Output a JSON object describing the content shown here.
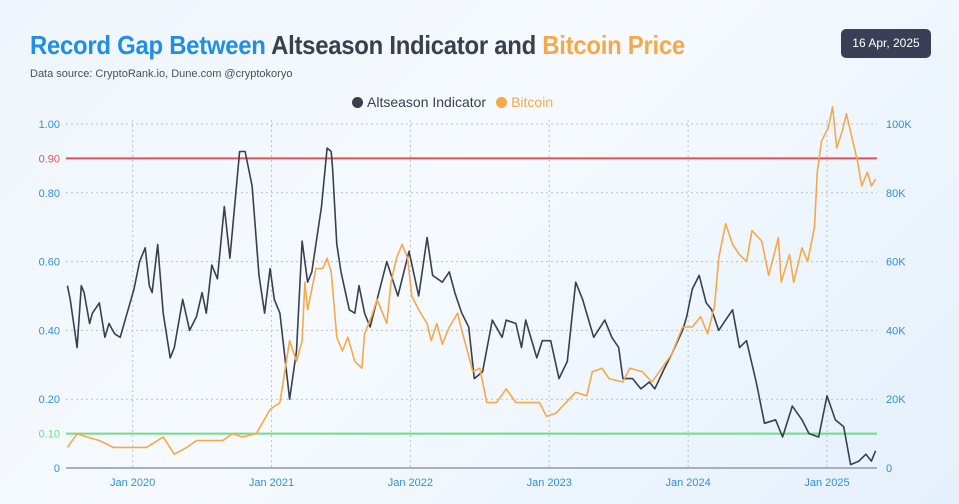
{
  "header": {
    "title_part1": "Record Gap Between",
    "title_part2": "Altseason Indicator and",
    "title_part3": "Bitcoin Price",
    "date_badge": "16 Apr, 2025",
    "subtitle": "Data source: CryptoRank.io, Dune.com @cryptokoryo"
  },
  "colors": {
    "accent_blue": "#1f8ee3",
    "altseason": "#3a3f4e",
    "bitcoin": "#f4a94a",
    "red_threshold": "#e05252",
    "green_threshold": "#6fdc87"
  },
  "chart_data": {
    "type": "line",
    "title": "Record Gap Between Altseason Indicator and Bitcoin Price",
    "legend": {
      "placement": "top-center",
      "entries": [
        "Altseason Indicator",
        "Bitcoin"
      ]
    },
    "xlim": [
      2019.52,
      2025.36
    ],
    "x_ticks": [
      {
        "x": 2020.0,
        "label": "Jan 2020"
      },
      {
        "x": 2021.0,
        "label": "Jan 2021"
      },
      {
        "x": 2022.0,
        "label": "Jan 2022"
      },
      {
        "x": 2023.0,
        "label": "Jan 2023"
      },
      {
        "x": 2024.0,
        "label": "Jan 2024"
      },
      {
        "x": 2025.0,
        "label": "Jan 2025"
      }
    ],
    "y_left": {
      "lim": [
        0,
        1
      ],
      "ticks": [
        {
          "v": 1.0,
          "label": "1.00"
        },
        {
          "v": 0.8,
          "label": "0.80"
        },
        {
          "v": 0.6,
          "label": "0.60"
        },
        {
          "v": 0.4,
          "label": "0.40"
        },
        {
          "v": 0.2,
          "label": "0.20"
        },
        {
          "v": 0,
          "label": "0"
        }
      ]
    },
    "y_right": {
      "lim": [
        0,
        100
      ],
      "unit": "K",
      "ticks": [
        {
          "v": 100,
          "label": "100K"
        },
        {
          "v": 80,
          "label": "80K"
        },
        {
          "v": 60,
          "label": "60K"
        },
        {
          "v": 40,
          "label": "40K"
        },
        {
          "v": 20,
          "label": "20K"
        },
        {
          "v": 0,
          "label": "0"
        }
      ]
    },
    "thresholds": [
      {
        "v": 0.9,
        "label": "0.90",
        "color": "#e05252"
      },
      {
        "v": 0.1,
        "label": "0.10",
        "color": "#6fdc87"
      }
    ],
    "grid": true,
    "series": [
      {
        "name": "Altseason Indicator",
        "axis": "left",
        "color": "#3a3f4e",
        "points": [
          [
            2019.53,
            0.53
          ],
          [
            2019.55,
            0.49
          ],
          [
            2019.6,
            0.35
          ],
          [
            2019.63,
            0.53
          ],
          [
            2019.65,
            0.51
          ],
          [
            2019.69,
            0.42
          ],
          [
            2019.71,
            0.45
          ],
          [
            2019.76,
            0.48
          ],
          [
            2019.8,
            0.38
          ],
          [
            2019.83,
            0.42
          ],
          [
            2019.87,
            0.39
          ],
          [
            2019.91,
            0.38
          ],
          [
            2019.96,
            0.45
          ],
          [
            2020.01,
            0.52
          ],
          [
            2020.05,
            0.6
          ],
          [
            2020.09,
            0.64
          ],
          [
            2020.12,
            0.53
          ],
          [
            2020.14,
            0.51
          ],
          [
            2020.18,
            0.65
          ],
          [
            2020.22,
            0.45
          ],
          [
            2020.27,
            0.32
          ],
          [
            2020.3,
            0.35
          ],
          [
            2020.36,
            0.49
          ],
          [
            2020.41,
            0.4
          ],
          [
            2020.46,
            0.44
          ],
          [
            2020.5,
            0.51
          ],
          [
            2020.53,
            0.45
          ],
          [
            2020.57,
            0.59
          ],
          [
            2020.61,
            0.55
          ],
          [
            2020.66,
            0.76
          ],
          [
            2020.7,
            0.61
          ],
          [
            2020.77,
            0.92
          ],
          [
            2020.81,
            0.92
          ],
          [
            2020.86,
            0.82
          ],
          [
            2020.91,
            0.56
          ],
          [
            2020.95,
            0.45
          ],
          [
            2020.99,
            0.58
          ],
          [
            2021.02,
            0.49
          ],
          [
            2021.06,
            0.45
          ],
          [
            2021.13,
            0.2
          ],
          [
            2021.18,
            0.34
          ],
          [
            2021.22,
            0.66
          ],
          [
            2021.26,
            0.54
          ],
          [
            2021.29,
            0.57
          ],
          [
            2021.36,
            0.76
          ],
          [
            2021.4,
            0.93
          ],
          [
            2021.43,
            0.92
          ],
          [
            2021.44,
            0.87
          ],
          [
            2021.47,
            0.65
          ],
          [
            2021.5,
            0.57
          ],
          [
            2021.56,
            0.46
          ],
          [
            2021.6,
            0.45
          ],
          [
            2021.63,
            0.53
          ],
          [
            2021.67,
            0.45
          ],
          [
            2021.71,
            0.41
          ],
          [
            2021.76,
            0.49
          ],
          [
            2021.83,
            0.6
          ],
          [
            2021.91,
            0.5
          ],
          [
            2021.99,
            0.63
          ],
          [
            2022.06,
            0.5
          ],
          [
            2022.12,
            0.67
          ],
          [
            2022.16,
            0.56
          ],
          [
            2022.23,
            0.54
          ],
          [
            2022.28,
            0.57
          ],
          [
            2022.32,
            0.51
          ],
          [
            2022.37,
            0.45
          ],
          [
            2022.42,
            0.41
          ],
          [
            2022.46,
            0.26
          ],
          [
            2022.52,
            0.28
          ],
          [
            2022.59,
            0.43
          ],
          [
            2022.66,
            0.38
          ],
          [
            2022.69,
            0.43
          ],
          [
            2022.76,
            0.42
          ],
          [
            2022.8,
            0.35
          ],
          [
            2022.83,
            0.43
          ],
          [
            2022.91,
            0.32
          ],
          [
            2022.95,
            0.37
          ],
          [
            2023.01,
            0.37
          ],
          [
            2023.07,
            0.26
          ],
          [
            2023.13,
            0.31
          ],
          [
            2023.19,
            0.54
          ],
          [
            2023.24,
            0.49
          ],
          [
            2023.32,
            0.38
          ],
          [
            2023.4,
            0.43
          ],
          [
            2023.45,
            0.38
          ],
          [
            2023.5,
            0.35
          ],
          [
            2023.53,
            0.26
          ],
          [
            2023.6,
            0.26
          ],
          [
            2023.66,
            0.23
          ],
          [
            2023.72,
            0.25
          ],
          [
            2023.76,
            0.23
          ],
          [
            2023.83,
            0.29
          ],
          [
            2023.88,
            0.33
          ],
          [
            2023.96,
            0.4
          ],
          [
            2023.99,
            0.44
          ],
          [
            2024.03,
            0.52
          ],
          [
            2024.08,
            0.56
          ],
          [
            2024.13,
            0.48
          ],
          [
            2024.17,
            0.46
          ],
          [
            2024.22,
            0.4
          ],
          [
            2024.27,
            0.43
          ],
          [
            2024.32,
            0.46
          ],
          [
            2024.37,
            0.35
          ],
          [
            2024.42,
            0.37
          ],
          [
            2024.49,
            0.25
          ],
          [
            2024.55,
            0.13
          ],
          [
            2024.63,
            0.14
          ],
          [
            2024.68,
            0.09
          ],
          [
            2024.75,
            0.18
          ],
          [
            2024.82,
            0.14
          ],
          [
            2024.87,
            0.1
          ],
          [
            2024.94,
            0.09
          ],
          [
            2025.0,
            0.21
          ],
          [
            2025.06,
            0.14
          ],
          [
            2025.12,
            0.12
          ],
          [
            2025.17,
            0.01
          ],
          [
            2025.23,
            0.02
          ],
          [
            2025.28,
            0.04
          ],
          [
            2025.32,
            0.02
          ],
          [
            2025.35,
            0.05
          ]
        ]
      },
      {
        "name": "Bitcoin",
        "axis": "right",
        "color": "#f4a94a",
        "points": [
          [
            2019.53,
            6
          ],
          [
            2019.6,
            10
          ],
          [
            2019.67,
            9
          ],
          [
            2019.76,
            8
          ],
          [
            2019.86,
            6
          ],
          [
            2020.01,
            6
          ],
          [
            2020.1,
            6
          ],
          [
            2020.22,
            9
          ],
          [
            2020.3,
            4
          ],
          [
            2020.39,
            6
          ],
          [
            2020.46,
            8
          ],
          [
            2020.65,
            8
          ],
          [
            2020.72,
            10
          ],
          [
            2020.79,
            9
          ],
          [
            2020.89,
            10
          ],
          [
            2020.99,
            17
          ],
          [
            2021.06,
            19
          ],
          [
            2021.13,
            37
          ],
          [
            2021.18,
            31
          ],
          [
            2021.22,
            37
          ],
          [
            2021.24,
            54
          ],
          [
            2021.26,
            46
          ],
          [
            2021.32,
            58
          ],
          [
            2021.37,
            58
          ],
          [
            2021.4,
            61
          ],
          [
            2021.43,
            57
          ],
          [
            2021.47,
            38
          ],
          [
            2021.51,
            34
          ],
          [
            2021.55,
            38
          ],
          [
            2021.6,
            31
          ],
          [
            2021.65,
            29
          ],
          [
            2021.67,
            39
          ],
          [
            2021.72,
            44
          ],
          [
            2021.76,
            49
          ],
          [
            2021.83,
            42
          ],
          [
            2021.86,
            54
          ],
          [
            2021.9,
            61
          ],
          [
            2021.94,
            65
          ],
          [
            2021.98,
            61
          ],
          [
            2022.01,
            50
          ],
          [
            2022.06,
            46
          ],
          [
            2022.12,
            42
          ],
          [
            2022.15,
            37
          ],
          [
            2022.19,
            42
          ],
          [
            2022.23,
            36
          ],
          [
            2022.28,
            41
          ],
          [
            2022.34,
            45
          ],
          [
            2022.37,
            40
          ],
          [
            2022.45,
            28
          ],
          [
            2022.5,
            29
          ],
          [
            2022.55,
            19
          ],
          [
            2022.62,
            19
          ],
          [
            2022.69,
            23
          ],
          [
            2022.76,
            19
          ],
          [
            2022.86,
            19
          ],
          [
            2022.93,
            19
          ],
          [
            2022.98,
            15
          ],
          [
            2023.05,
            16
          ],
          [
            2023.12,
            19
          ],
          [
            2023.19,
            22
          ],
          [
            2023.27,
            21
          ],
          [
            2023.31,
            28
          ],
          [
            2023.38,
            29
          ],
          [
            2023.43,
            26
          ],
          [
            2023.53,
            25
          ],
          [
            2023.58,
            29
          ],
          [
            2023.67,
            28
          ],
          [
            2023.74,
            25
          ],
          [
            2023.81,
            29
          ],
          [
            2023.88,
            33
          ],
          [
            2023.96,
            41
          ],
          [
            2024.03,
            41
          ],
          [
            2024.09,
            44
          ],
          [
            2024.14,
            39
          ],
          [
            2024.19,
            47
          ],
          [
            2024.22,
            61
          ],
          [
            2024.27,
            71
          ],
          [
            2024.32,
            65
          ],
          [
            2024.37,
            62
          ],
          [
            2024.42,
            60
          ],
          [
            2024.46,
            69
          ],
          [
            2024.53,
            66
          ],
          [
            2024.58,
            56
          ],
          [
            2024.65,
            67
          ],
          [
            2024.67,
            54
          ],
          [
            2024.73,
            62
          ],
          [
            2024.76,
            54
          ],
          [
            2024.82,
            64
          ],
          [
            2024.86,
            60
          ],
          [
            2024.91,
            70
          ],
          [
            2024.93,
            86
          ],
          [
            2024.96,
            95
          ],
          [
            2025.01,
            99
          ],
          [
            2025.04,
            105
          ],
          [
            2025.07,
            93
          ],
          [
            2025.11,
            98
          ],
          [
            2025.14,
            103
          ],
          [
            2025.18,
            96
          ],
          [
            2025.22,
            89
          ],
          [
            2025.25,
            82
          ],
          [
            2025.29,
            86
          ],
          [
            2025.32,
            82
          ],
          [
            2025.35,
            84
          ]
        ]
      }
    ]
  }
}
